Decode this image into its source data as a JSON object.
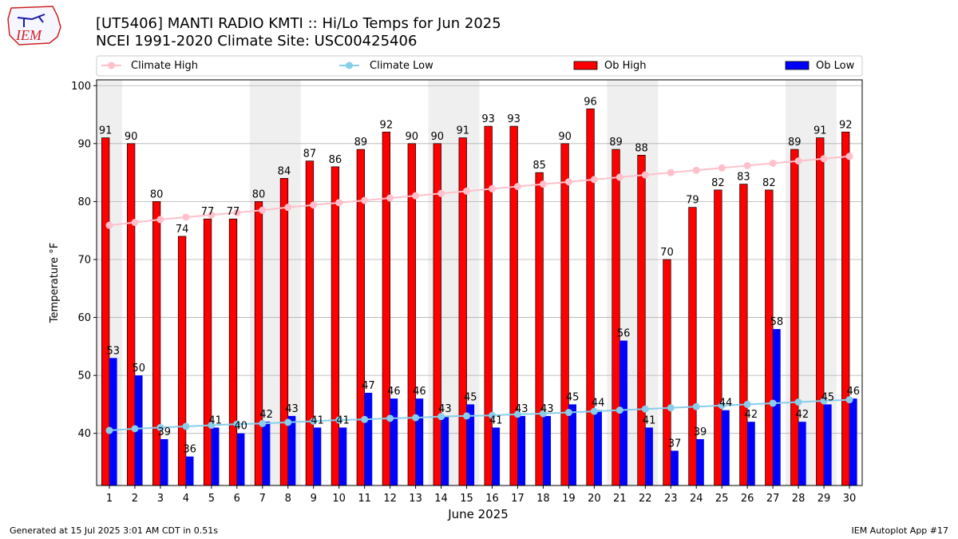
{
  "title": {
    "line1": "[UT5406] MANTI RADIO KMTI :: Hi/Lo Temps for Jun 2025",
    "line2": "NCEI 1991-2020 Climate Site: USC00425406"
  },
  "logo": {
    "text": "IEM",
    "accent": "#cc2222"
  },
  "footer": {
    "left": "Generated at 15 Jul 2025 3:01 AM CDT in 0.51s",
    "right": "IEM Autoplot App #17"
  },
  "chart_data": {
    "type": "bar",
    "xlabel": "June 2025",
    "ylabel": "Temperature °F",
    "ylim": [
      31,
      101
    ],
    "yticks": [
      40,
      50,
      60,
      70,
      80,
      90,
      100
    ],
    "grid": true,
    "legend_position": "top",
    "categories": [
      "1",
      "2",
      "3",
      "4",
      "5",
      "6",
      "7",
      "8",
      "9",
      "10",
      "11",
      "12",
      "13",
      "14",
      "15",
      "16",
      "17",
      "18",
      "19",
      "20",
      "21",
      "22",
      "23",
      "24",
      "25",
      "26",
      "27",
      "28",
      "29",
      "30"
    ],
    "weekend_shading": [
      [
        1,
        1
      ],
      [
        7,
        8
      ],
      [
        14,
        15
      ],
      [
        21,
        22
      ],
      [
        28,
        29
      ]
    ],
    "series": [
      {
        "name": "Ob High",
        "kind": "bar",
        "color": "#ff0000",
        "values": [
          91,
          90,
          80,
          74,
          77,
          77,
          80,
          84,
          87,
          86,
          89,
          92,
          90,
          90,
          91,
          93,
          93,
          85,
          90,
          96,
          89,
          88,
          70,
          79,
          82,
          83,
          82,
          89,
          91,
          92
        ]
      },
      {
        "name": "Ob Low",
        "kind": "bar",
        "color": "#0000ff",
        "values": [
          53,
          50,
          39,
          36,
          41,
          40,
          42,
          43,
          41,
          41,
          47,
          46,
          46,
          43,
          45,
          41,
          43,
          43,
          45,
          44,
          56,
          41,
          37,
          39,
          44,
          42,
          58,
          42,
          45,
          46
        ]
      },
      {
        "name": "Climate High",
        "kind": "line",
        "color": "#ffc0cb",
        "values": [
          75.9,
          76.4,
          76.9,
          77.3,
          77.7,
          78.1,
          78.5,
          79.0,
          79.4,
          79.8,
          80.2,
          80.6,
          81.0,
          81.4,
          81.8,
          82.2,
          82.6,
          83.0,
          83.4,
          83.8,
          84.2,
          84.6,
          85.0,
          85.4,
          85.8,
          86.2,
          86.6,
          87.0,
          87.4,
          87.8
        ]
      },
      {
        "name": "Climate Low",
        "kind": "line",
        "color": "#87ceeb",
        "values": [
          40.5,
          40.8,
          41.0,
          41.2,
          41.4,
          41.6,
          41.7,
          41.9,
          42.1,
          42.3,
          42.4,
          42.6,
          42.7,
          42.9,
          43.0,
          43.1,
          43.3,
          43.4,
          43.6,
          43.8,
          44.0,
          44.2,
          44.4,
          44.6,
          44.8,
          45.0,
          45.2,
          45.4,
          45.6,
          45.8
        ]
      }
    ]
  }
}
